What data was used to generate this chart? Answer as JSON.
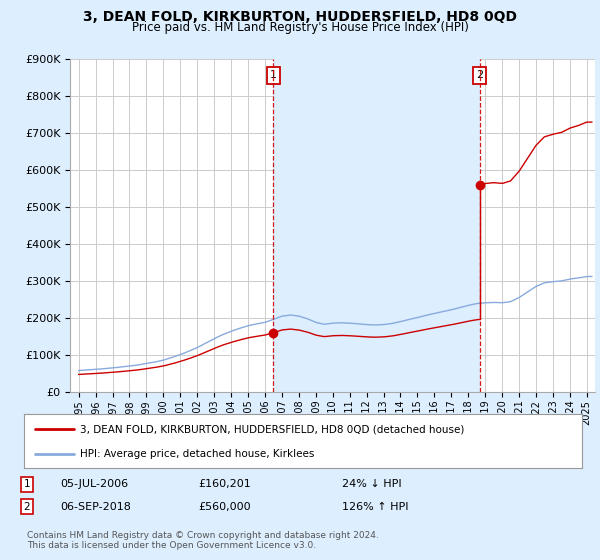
{
  "title": "3, DEAN FOLD, KIRKBURTON, HUDDERSFIELD, HD8 0QD",
  "subtitle": "Price paid vs. HM Land Registry's House Price Index (HPI)",
  "ylabel_ticks": [
    "£0",
    "£100K",
    "£200K",
    "£300K",
    "£400K",
    "£500K",
    "£600K",
    "£700K",
    "£800K",
    "£900K"
  ],
  "ytick_values": [
    0,
    100000,
    200000,
    300000,
    400000,
    500000,
    600000,
    700000,
    800000,
    900000
  ],
  "ylim": [
    0,
    900000
  ],
  "xlim_start": 1994.5,
  "xlim_end": 2025.5,
  "sale1_x": 2006.5,
  "sale1_y": 160201,
  "sale2_x": 2018.67,
  "sale2_y": 560000,
  "sale1_label": "1",
  "sale2_label": "2",
  "sale1_date": "05-JUL-2006",
  "sale1_price": "£160,201",
  "sale1_hpi": "24% ↓ HPI",
  "sale2_date": "06-SEP-2018",
  "sale2_price": "£560,000",
  "sale2_hpi": "126% ↑ HPI",
  "legend_line1": "3, DEAN FOLD, KIRKBURTON, HUDDERSFIELD, HD8 0QD (detached house)",
  "legend_line2": "HPI: Average price, detached house, Kirklees",
  "footer": "Contains HM Land Registry data © Crown copyright and database right 2024.\nThis data is licensed under the Open Government Licence v3.0.",
  "line_color_sale": "#cc0000",
  "line_color_hpi": "#88aadd",
  "bg_color": "#ddeeff",
  "plot_bg": "#ffffff",
  "grid_color": "#cccccc",
  "vline_color": "#cc0000",
  "dot_color": "#cc0000",
  "shade_color": "#ddeeff",
  "xtick_years": [
    1995,
    1996,
    1997,
    1998,
    1999,
    2000,
    2001,
    2002,
    2003,
    2004,
    2005,
    2006,
    2007,
    2008,
    2009,
    2010,
    2011,
    2012,
    2013,
    2014,
    2015,
    2016,
    2017,
    2018,
    2019,
    2020,
    2021,
    2022,
    2023,
    2024,
    2025
  ],
  "hpi_years": [
    1995,
    1995.5,
    1996,
    1996.5,
    1997,
    1997.5,
    1998,
    1998.5,
    1999,
    1999.5,
    2000,
    2000.5,
    2001,
    2001.5,
    2002,
    2002.5,
    2003,
    2003.5,
    2004,
    2004.5,
    2005,
    2005.5,
    2006,
    2006.5,
    2007,
    2007.5,
    2008,
    2008.5,
    2009,
    2009.5,
    2010,
    2010.5,
    2011,
    2011.5,
    2012,
    2012.5,
    2013,
    2013.5,
    2014,
    2014.5,
    2015,
    2015.5,
    2016,
    2016.5,
    2017,
    2017.5,
    2018,
    2018.5,
    2019,
    2019.5,
    2020,
    2020.5,
    2021,
    2021.5,
    2022,
    2022.5,
    2023,
    2023.5,
    2024,
    2024.5,
    2025
  ],
  "hpi_values": [
    58000,
    59500,
    61000,
    63000,
    65000,
    67500,
    70000,
    73000,
    77000,
    81000,
    86000,
    93000,
    101000,
    110000,
    120000,
    132000,
    144000,
    155000,
    164000,
    172000,
    179000,
    184000,
    188000,
    196000,
    205000,
    208000,
    205000,
    198000,
    188000,
    183000,
    186000,
    187000,
    186000,
    184000,
    182000,
    181000,
    182000,
    185000,
    190000,
    196000,
    201000,
    207000,
    212000,
    217000,
    222000,
    228000,
    234000,
    239000,
    241000,
    242000,
    241000,
    244000,
    255000,
    270000,
    285000,
    295000,
    298000,
    300000,
    305000,
    308000,
    312000
  ]
}
